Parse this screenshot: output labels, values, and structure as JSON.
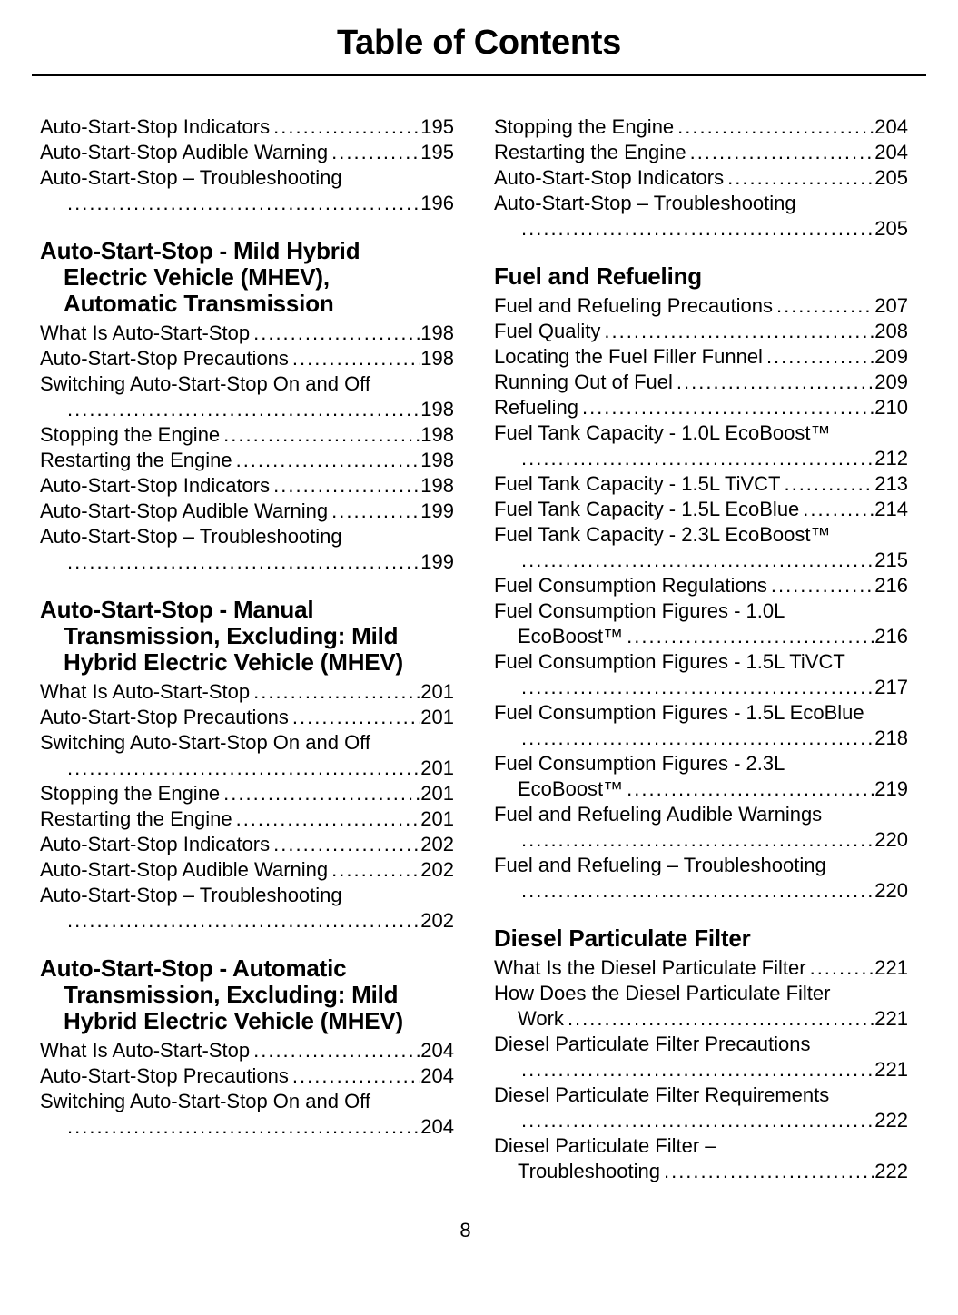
{
  "page": {
    "title": "Table of Contents",
    "page_number": "8"
  },
  "toc": {
    "left_column": [
      {
        "type": "entries",
        "items": [
          {
            "label": "Auto-Start-Stop Indicators",
            "page": "195"
          },
          {
            "label": "Auto-Start-Stop Audible Warning",
            "page": "195"
          },
          {
            "label": "Auto-Start-Stop – Troubleshooting",
            "page": "196",
            "leader_line": true
          }
        ]
      },
      {
        "type": "heading",
        "text": "Auto-Start-Stop - Mild Hybrid Electric Vehicle (MHEV), Automatic Transmission"
      },
      {
        "type": "entries",
        "items": [
          {
            "label": "What Is Auto-Start-Stop",
            "page": "198"
          },
          {
            "label": "Auto-Start-Stop Precautions",
            "page": "198"
          },
          {
            "label": "Switching Auto-Start-Stop On and Off",
            "page": "198",
            "leader_line": true
          },
          {
            "label": "Stopping the Engine",
            "page": "198"
          },
          {
            "label": "Restarting the Engine",
            "page": "198"
          },
          {
            "label": "Auto-Start-Stop Indicators",
            "page": "198"
          },
          {
            "label": "Auto-Start-Stop Audible Warning",
            "page": "199"
          },
          {
            "label": "Auto-Start-Stop – Troubleshooting",
            "page": "199",
            "leader_line": true
          }
        ]
      },
      {
        "type": "heading",
        "text": "Auto-Start-Stop - Manual Transmission, Excluding: Mild Hybrid Electric Vehicle (MHEV)"
      },
      {
        "type": "entries",
        "items": [
          {
            "label": "What Is Auto-Start-Stop",
            "page": "201"
          },
          {
            "label": "Auto-Start-Stop Precautions",
            "page": "201"
          },
          {
            "label": "Switching Auto-Start-Stop On and Off",
            "page": "201",
            "leader_line": true
          },
          {
            "label": "Stopping the Engine",
            "page": "201"
          },
          {
            "label": "Restarting the Engine",
            "page": "201"
          },
          {
            "label": "Auto-Start-Stop Indicators",
            "page": "202"
          },
          {
            "label": "Auto-Start-Stop Audible Warning",
            "page": "202"
          },
          {
            "label": "Auto-Start-Stop – Troubleshooting",
            "page": "202",
            "leader_line": true
          }
        ]
      },
      {
        "type": "heading",
        "text": "Auto-Start-Stop - Automatic Transmission, Excluding: Mild Hybrid Electric Vehicle (MHEV)"
      },
      {
        "type": "entries",
        "items": [
          {
            "label": "What Is Auto-Start-Stop",
            "page": "204"
          },
          {
            "label": "Auto-Start-Stop Precautions",
            "page": "204"
          },
          {
            "label": "Switching Auto-Start-Stop On and Off",
            "page": "204",
            "leader_line": true
          }
        ]
      }
    ],
    "right_column": [
      {
        "type": "entries",
        "items": [
          {
            "label": "Stopping the Engine",
            "page": "204"
          },
          {
            "label": "Restarting the Engine",
            "page": "204"
          },
          {
            "label": "Auto-Start-Stop Indicators",
            "page": "205"
          },
          {
            "label": "Auto-Start-Stop – Troubleshooting",
            "page": "205",
            "leader_line": true
          }
        ]
      },
      {
        "type": "heading",
        "text": "Fuel and Refueling"
      },
      {
        "type": "entries",
        "items": [
          {
            "label": "Fuel and Refueling Precautions",
            "page": "207"
          },
          {
            "label": "Fuel Quality",
            "page": "208"
          },
          {
            "label": "Locating the Fuel Filler Funnel",
            "page": "209"
          },
          {
            "label": "Running Out of Fuel",
            "page": "209"
          },
          {
            "label": "Refueling",
            "page": "210"
          },
          {
            "label": "Fuel Tank Capacity - 1.0L EcoBoost™",
            "page": "212",
            "leader_line": true
          },
          {
            "label": "Fuel Tank Capacity - 1.5L TiVCT",
            "page": "213"
          },
          {
            "label": "Fuel Tank Capacity - 1.5L EcoBlue",
            "page": "214"
          },
          {
            "label": "Fuel Tank Capacity - 2.3L EcoBoost™",
            "page": "215",
            "leader_line": true
          },
          {
            "label": "Fuel Consumption Regulations",
            "page": "216"
          },
          {
            "label": "Fuel Consumption Figures - 1.0L",
            "tail": "EcoBoost™",
            "page": "216"
          },
          {
            "label": "Fuel Consumption Figures - 1.5L TiVCT",
            "page": "217",
            "leader_line": true
          },
          {
            "label": "Fuel Consumption Figures - 1.5L EcoBlue",
            "page": "218",
            "leader_line": true
          },
          {
            "label": "Fuel Consumption Figures - 2.3L",
            "tail": "EcoBoost™",
            "page": "219"
          },
          {
            "label": "Fuel and Refueling Audible Warnings",
            "page": "220",
            "leader_line": true
          },
          {
            "label": "Fuel and Refueling – Troubleshooting",
            "page": "220",
            "leader_line": true
          }
        ]
      },
      {
        "type": "heading",
        "text": "Diesel Particulate Filter"
      },
      {
        "type": "entries",
        "items": [
          {
            "label": "What Is the Diesel Particulate Filter",
            "page": "221"
          },
          {
            "label": "How Does the Diesel Particulate Filter",
            "tail": "Work",
            "page": "221"
          },
          {
            "label": "Diesel Particulate Filter Precautions",
            "page": "221",
            "leader_line": true
          },
          {
            "label": "Diesel Particulate Filter Requirements",
            "page": "222",
            "leader_line": true
          },
          {
            "label": "Diesel Particulate Filter –",
            "tail": "Troubleshooting",
            "page": "222"
          }
        ]
      }
    ]
  }
}
